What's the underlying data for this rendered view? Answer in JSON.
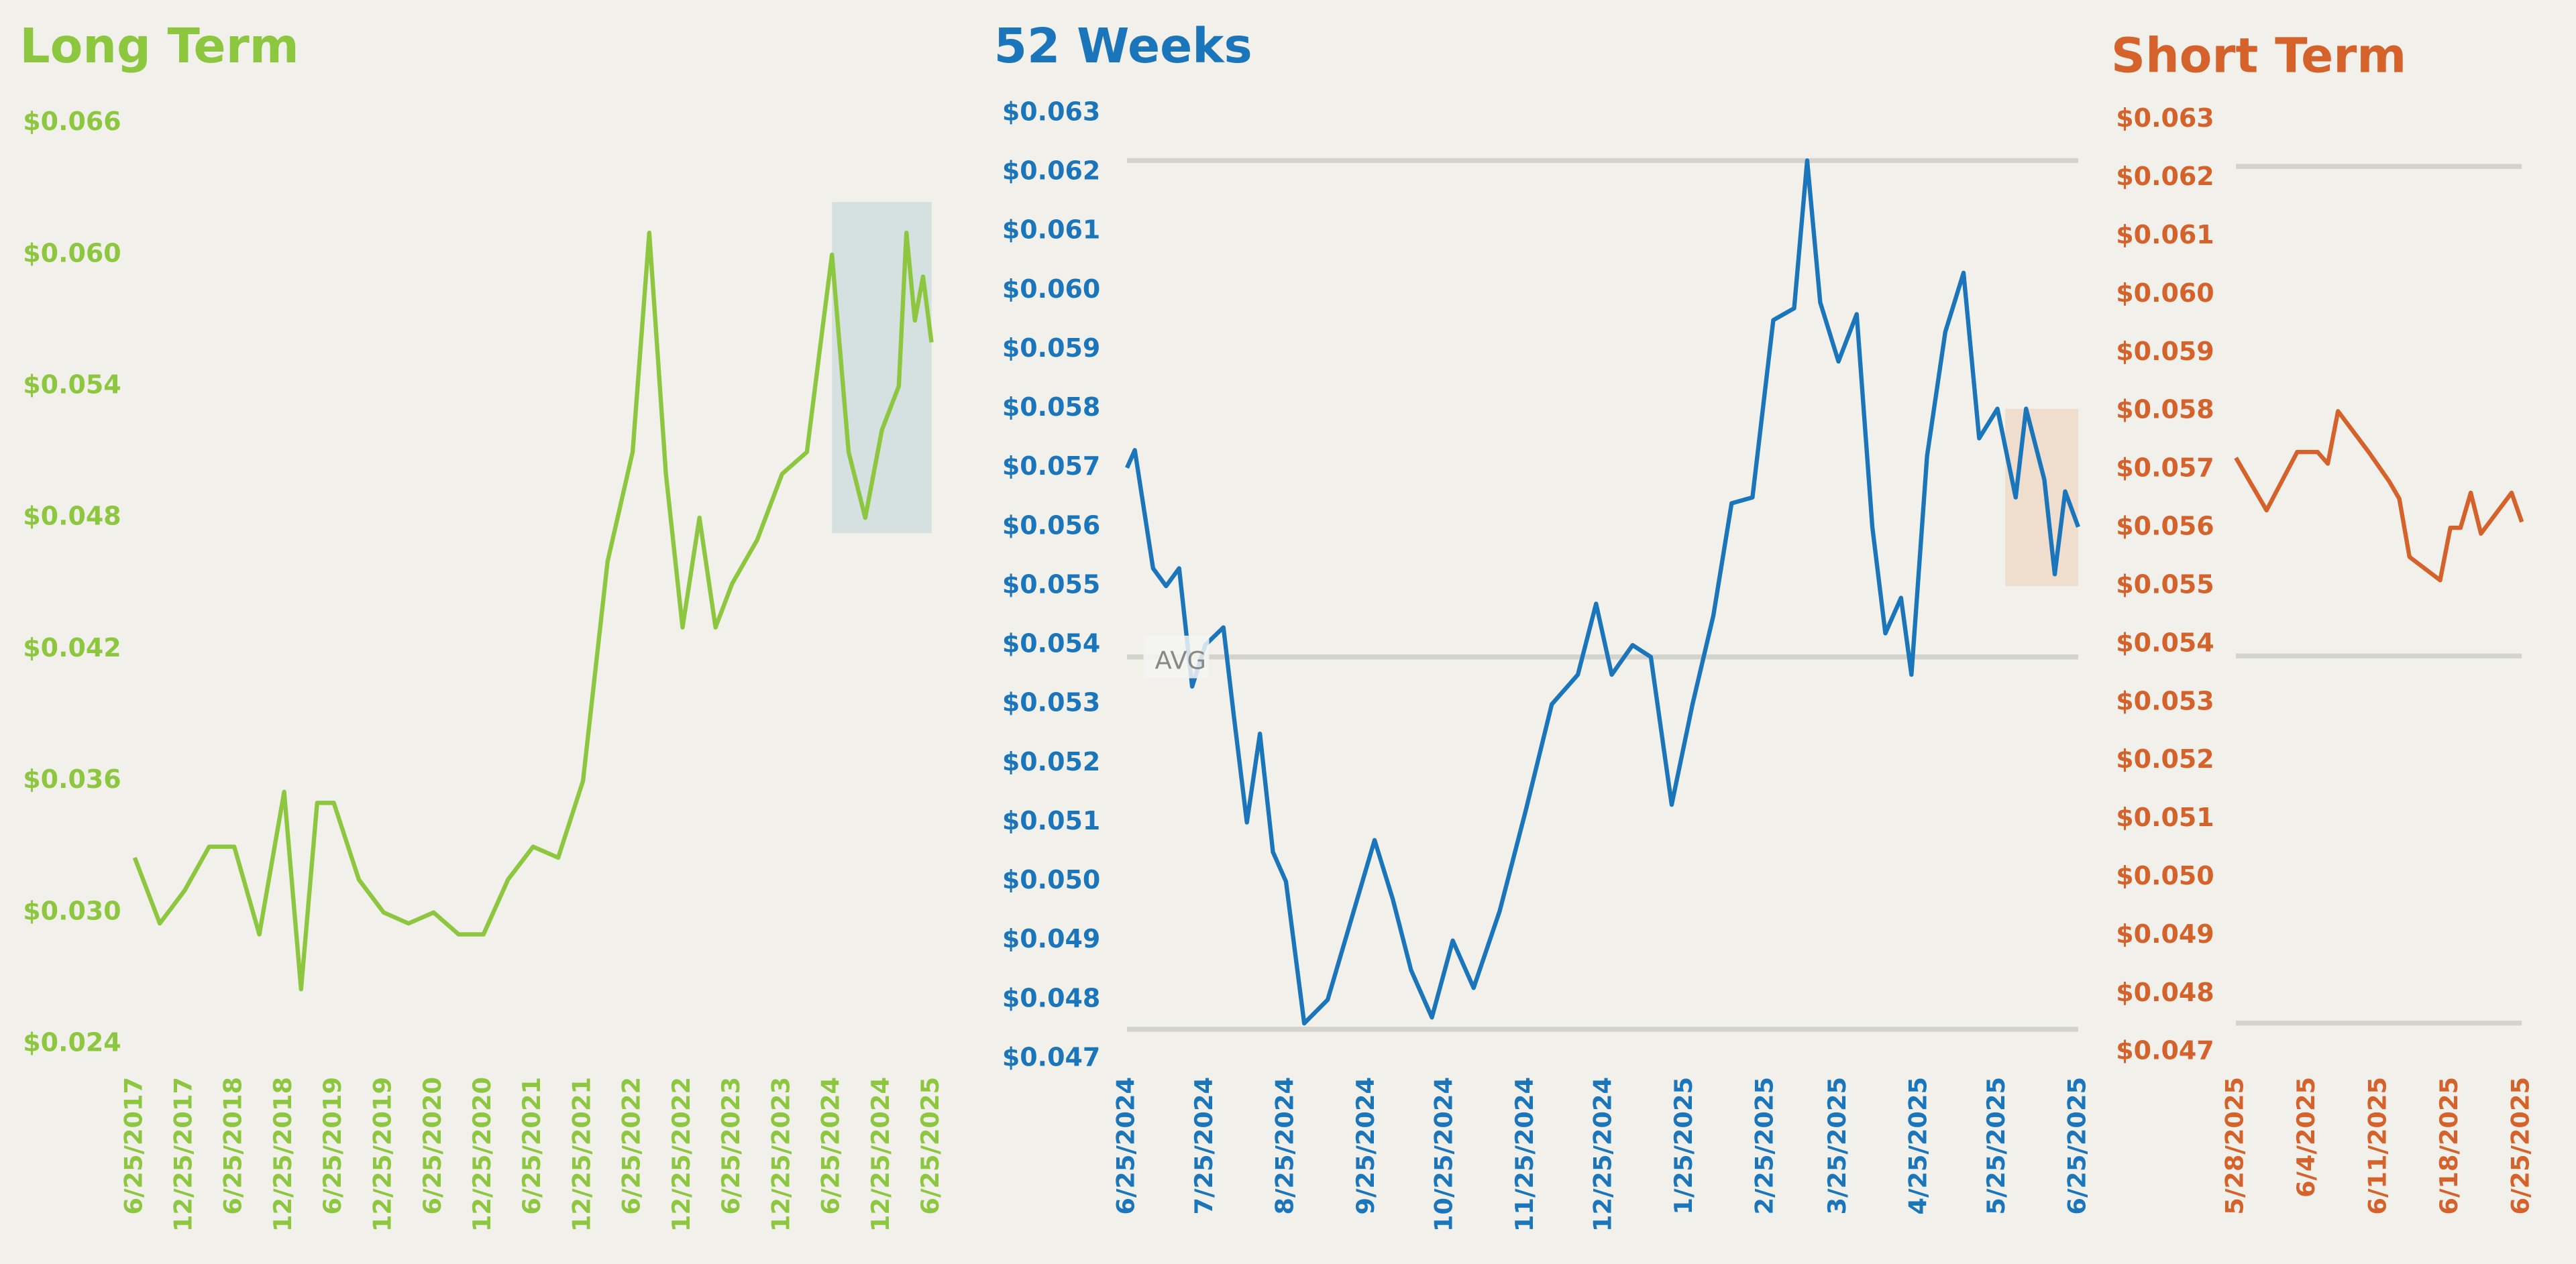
{
  "chart_data": [
    {
      "type": "line",
      "title": "Long Term",
      "color": "#8dc63f",
      "x": [
        "6/25/2017",
        "9/25/2017",
        "12/25/2017",
        "3/25/2018",
        "6/25/2018",
        "9/25/2018",
        "12/25/2018",
        "2/25/2019",
        "4/25/2019",
        "6/25/2019",
        "9/25/2019",
        "12/25/2019",
        "3/25/2020",
        "6/25/2020",
        "9/25/2020",
        "12/25/2020",
        "3/25/2021",
        "6/25/2021",
        "9/25/2021",
        "12/25/2021",
        "3/25/2022",
        "6/25/2022",
        "8/25/2022",
        "10/25/2022",
        "12/25/2022",
        "2/25/2023",
        "4/25/2023",
        "6/25/2023",
        "9/25/2023",
        "12/25/2023",
        "3/25/2024",
        "5/25/2024",
        "6/25/2024",
        "8/25/2024",
        "10/25/2024",
        "12/25/2024",
        "2/25/2025",
        "3/25/2025",
        "4/25/2025",
        "5/25/2025",
        "6/25/2025"
      ],
      "values": [
        0.0325,
        0.0295,
        0.031,
        0.033,
        0.033,
        0.029,
        0.0355,
        0.0265,
        0.035,
        0.035,
        0.0315,
        0.03,
        0.0295,
        0.03,
        0.029,
        0.029,
        0.0315,
        0.033,
        0.0325,
        0.036,
        0.046,
        0.051,
        0.061,
        0.05,
        0.043,
        0.048,
        0.043,
        0.045,
        0.047,
        0.05,
        0.051,
        0.057,
        0.06,
        0.051,
        0.048,
        0.052,
        0.054,
        0.061,
        0.057,
        0.059,
        0.056
      ],
      "xlim": [
        "6/25/2017",
        "6/25/2025"
      ],
      "xticks": [
        "6/25/2017",
        "12/25/2017",
        "6/25/2018",
        "12/25/2018",
        "6/25/2019",
        "12/25/2019",
        "6/25/2020",
        "12/25/2020",
        "6/25/2021",
        "12/25/2021",
        "6/25/2022",
        "12/25/2022",
        "6/25/2023",
        "12/25/2023",
        "6/25/2024",
        "12/25/2024",
        "6/25/2025"
      ],
      "ylim": [
        0.024,
        0.066
      ],
      "yticks": [
        {
          "value": 0.024,
          "label": "$0.024"
        },
        {
          "value": 0.03,
          "label": "$0.030"
        },
        {
          "value": 0.036,
          "label": "$0.036"
        },
        {
          "value": 0.042,
          "label": "$0.042"
        },
        {
          "value": 0.048,
          "label": "$0.048"
        },
        {
          "value": 0.054,
          "label": "$0.054"
        },
        {
          "value": 0.06,
          "label": "$0.060"
        },
        {
          "value": 0.066,
          "label": "$0.066"
        }
      ],
      "grid": false,
      "highlight": {
        "x": [
          "6/25/2024",
          "6/25/2025"
        ],
        "y": [
          0.0473,
          0.0624
        ],
        "color": "rgba(160,195,205,0.35)"
      }
    },
    {
      "type": "line",
      "title": "52 Weeks",
      "color": "#1a75bb",
      "x": [
        "6/25/2024",
        "6/28/2024",
        "7/5/2024",
        "7/10/2024",
        "7/15/2024",
        "7/20/2024",
        "7/25/2024",
        "8/1/2024",
        "8/5/2024",
        "8/10/2024",
        "8/15/2024",
        "8/20/2024",
        "8/25/2024",
        "9/1/2024",
        "9/10/2024",
        "9/20/2024",
        "9/28/2024",
        "10/5/2024",
        "10/12/2024",
        "10/20/2024",
        "10/28/2024",
        "11/5/2024",
        "11/15/2024",
        "11/25/2024",
        "12/5/2024",
        "12/15/2024",
        "12/22/2024",
        "12/28/2024",
        "1/5/2025",
        "1/12/2025",
        "1/20/2025",
        "1/28/2025",
        "2/5/2025",
        "2/12/2025",
        "2/20/2025",
        "2/28/2025",
        "3/8/2025",
        "3/13/2025",
        "3/18/2025",
        "3/25/2025",
        "4/1/2025",
        "4/7/2025",
        "4/12/2025",
        "4/18/2025",
        "4/22/2025",
        "4/28/2025",
        "5/5/2025",
        "5/12/2025",
        "5/18/2025",
        "5/25/2025",
        "6/1/2025",
        "6/5/2025",
        "6/12/2025",
        "6/16/2025",
        "6/20/2025",
        "6/25/2025"
      ],
      "values": [
        0.057,
        0.0573,
        0.0553,
        0.055,
        0.0553,
        0.0533,
        0.054,
        0.0543,
        0.0528,
        0.051,
        0.0525,
        0.0505,
        0.05,
        0.0476,
        0.048,
        0.0495,
        0.0507,
        0.0497,
        0.0485,
        0.0477,
        0.049,
        0.0482,
        0.0495,
        0.0512,
        0.053,
        0.0535,
        0.0547,
        0.0535,
        0.054,
        0.0538,
        0.0513,
        0.053,
        0.0545,
        0.0564,
        0.0565,
        0.0595,
        0.0597,
        0.0622,
        0.0598,
        0.0588,
        0.0596,
        0.056,
        0.0542,
        0.0548,
        0.0535,
        0.0572,
        0.0593,
        0.0603,
        0.0575,
        0.058,
        0.0565,
        0.058,
        0.0568,
        0.0552,
        0.0566,
        0.056
      ],
      "xlim": [
        "6/25/2024",
        "6/25/2025"
      ],
      "xticks": [
        "6/25/2024",
        "7/25/2024",
        "8/25/2024",
        "9/25/2024",
        "10/25/2024",
        "11/25/2024",
        "12/25/2024",
        "1/25/2025",
        "2/25/2025",
        "3/25/2025",
        "4/25/2025",
        "5/25/2025",
        "6/25/2025"
      ],
      "ylim": [
        0.047,
        0.063
      ],
      "yticks": [
        {
          "value": 0.047,
          "label": "$0.047"
        },
        {
          "value": 0.048,
          "label": "$0.048"
        },
        {
          "value": 0.049,
          "label": "$0.049"
        },
        {
          "value": 0.05,
          "label": "$0.050"
        },
        {
          "value": 0.051,
          "label": "$0.051"
        },
        {
          "value": 0.052,
          "label": "$0.052"
        },
        {
          "value": 0.053,
          "label": "$0.053"
        },
        {
          "value": 0.054,
          "label": "$0.054"
        },
        {
          "value": 0.055,
          "label": "$0.055"
        },
        {
          "value": 0.056,
          "label": "$0.056"
        },
        {
          "value": 0.057,
          "label": "$0.057"
        },
        {
          "value": 0.058,
          "label": "$0.058"
        },
        {
          "value": 0.059,
          "label": "$0.059"
        },
        {
          "value": 0.06,
          "label": "$0.060"
        },
        {
          "value": 0.061,
          "label": "$0.061"
        },
        {
          "value": 0.062,
          "label": "$0.062"
        },
        {
          "value": 0.063,
          "label": "$0.063"
        }
      ],
      "grid": false,
      "reference_lines": [
        {
          "value": 0.0622
        },
        {
          "value": 0.0538,
          "label": "AVG"
        },
        {
          "value": 0.0475
        }
      ],
      "highlight": {
        "x": [
          "5/28/2025",
          "6/25/2025"
        ],
        "y": [
          0.055,
          0.058
        ],
        "color": "rgba(235,185,155,0.35)"
      }
    },
    {
      "type": "line",
      "title": "Short Term",
      "color": "#d4622a",
      "x": [
        "5/28/2025",
        "5/31/2025",
        "6/3/2025",
        "6/5/2025",
        "6/6/2025",
        "6/7/2025",
        "6/10/2025",
        "6/12/2025",
        "6/13/2025",
        "6/14/2025",
        "6/17/2025",
        "6/18/2025",
        "6/19/2025",
        "6/20/2025",
        "6/21/2025",
        "6/24/2025",
        "6/25/2025"
      ],
      "values": [
        0.0572,
        0.0563,
        0.0573,
        0.0573,
        0.0571,
        0.058,
        0.0573,
        0.0568,
        0.0565,
        0.0555,
        0.0551,
        0.056,
        0.056,
        0.0566,
        0.0559,
        0.0566,
        0.0561
      ],
      "xlim": [
        "5/28/2025",
        "6/25/2025"
      ],
      "xticks": [
        "5/28/2025",
        "6/4/2025",
        "6/11/2025",
        "6/18/2025",
        "6/25/2025"
      ],
      "ylim": [
        0.047,
        0.063
      ],
      "yticks": [
        {
          "value": 0.047,
          "label": "$0.047"
        },
        {
          "value": 0.048,
          "label": "$0.048"
        },
        {
          "value": 0.049,
          "label": "$0.049"
        },
        {
          "value": 0.05,
          "label": "$0.050"
        },
        {
          "value": 0.051,
          "label": "$0.051"
        },
        {
          "value": 0.052,
          "label": "$0.052"
        },
        {
          "value": 0.053,
          "label": "$0.053"
        },
        {
          "value": 0.054,
          "label": "$0.054"
        },
        {
          "value": 0.055,
          "label": "$0.055"
        },
        {
          "value": 0.056,
          "label": "$0.056"
        },
        {
          "value": 0.057,
          "label": "$0.057"
        },
        {
          "value": 0.058,
          "label": "$0.058"
        },
        {
          "value": 0.059,
          "label": "$0.059"
        },
        {
          "value": 0.06,
          "label": "$0.060"
        },
        {
          "value": 0.061,
          "label": "$0.061"
        },
        {
          "value": 0.062,
          "label": "$0.062"
        },
        {
          "value": 0.063,
          "label": "$0.063"
        }
      ],
      "grid": false,
      "reference_lines": [
        {
          "value": 0.0622
        },
        {
          "value": 0.0538
        },
        {
          "value": 0.0475
        }
      ]
    }
  ]
}
